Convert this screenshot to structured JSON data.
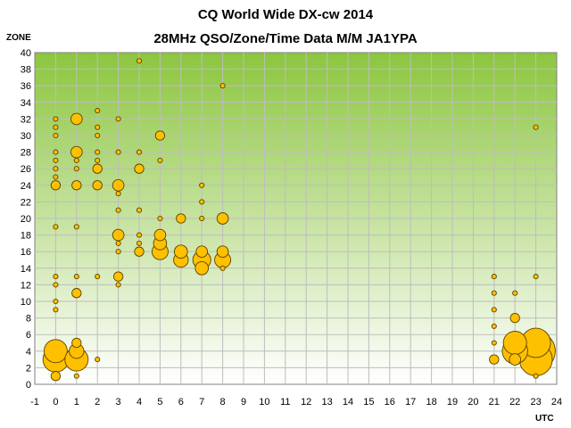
{
  "chart_data": {
    "type": "scatter",
    "title": "CQ World Wide DX-cw 2014",
    "subtitle": "28MHz QSO/Zone/Time Data M/M JA1YPA",
    "xlabel": "UTC",
    "ylabel": "ZONE",
    "xlim": [
      -1,
      24
    ],
    "ylim": [
      0,
      40
    ],
    "x_ticks": [
      -1,
      0,
      1,
      2,
      3,
      4,
      5,
      6,
      7,
      8,
      9,
      10,
      11,
      12,
      13,
      14,
      15,
      16,
      17,
      18,
      19,
      20,
      21,
      22,
      23,
      24
    ],
    "y_ticks": [
      0,
      2,
      4,
      6,
      8,
      10,
      12,
      14,
      16,
      18,
      20,
      22,
      24,
      26,
      28,
      30,
      32,
      34,
      36,
      38,
      40
    ],
    "grid": true,
    "legend": "none",
    "colors": {
      "bubble_fill": "#ffc000",
      "bubble_stroke": "#5a4400",
      "plot_bg_top": "#8cc63f",
      "plot_bg_bottom": "#ffffff"
    },
    "points": [
      {
        "x": 0,
        "y": 32,
        "size": 1
      },
      {
        "x": 0,
        "y": 31,
        "size": 1
      },
      {
        "x": 0,
        "y": 30,
        "size": 1
      },
      {
        "x": 0,
        "y": 28,
        "size": 1
      },
      {
        "x": 0,
        "y": 27,
        "size": 1
      },
      {
        "x": 0,
        "y": 26,
        "size": 1
      },
      {
        "x": 0,
        "y": 25,
        "size": 1
      },
      {
        "x": 0,
        "y": 24,
        "size": 4
      },
      {
        "x": 0,
        "y": 19,
        "size": 1
      },
      {
        "x": 0,
        "y": 13,
        "size": 1
      },
      {
        "x": 0,
        "y": 12,
        "size": 1
      },
      {
        "x": 0,
        "y": 10,
        "size": 1
      },
      {
        "x": 0,
        "y": 9,
        "size": 1
      },
      {
        "x": 0,
        "y": 4,
        "size": 25
      },
      {
        "x": 0,
        "y": 3,
        "size": 30
      },
      {
        "x": 0,
        "y": 1,
        "size": 4
      },
      {
        "x": 1,
        "y": 32,
        "size": 6
      },
      {
        "x": 1,
        "y": 28,
        "size": 6
      },
      {
        "x": 1,
        "y": 27,
        "size": 1
      },
      {
        "x": 1,
        "y": 26,
        "size": 1
      },
      {
        "x": 1,
        "y": 24,
        "size": 4
      },
      {
        "x": 1,
        "y": 19,
        "size": 1
      },
      {
        "x": 1,
        "y": 13,
        "size": 1
      },
      {
        "x": 1,
        "y": 11,
        "size": 4
      },
      {
        "x": 1,
        "y": 5,
        "size": 4
      },
      {
        "x": 1,
        "y": 4,
        "size": 10
      },
      {
        "x": 1,
        "y": 3,
        "size": 25
      },
      {
        "x": 1,
        "y": 1,
        "size": 1
      },
      {
        "x": 2,
        "y": 33,
        "size": 1
      },
      {
        "x": 2,
        "y": 31,
        "size": 1
      },
      {
        "x": 2,
        "y": 30,
        "size": 1
      },
      {
        "x": 2,
        "y": 28,
        "size": 1
      },
      {
        "x": 2,
        "y": 27,
        "size": 1
      },
      {
        "x": 2,
        "y": 26,
        "size": 4
      },
      {
        "x": 2,
        "y": 24,
        "size": 4
      },
      {
        "x": 2,
        "y": 13,
        "size": 1
      },
      {
        "x": 2,
        "y": 3,
        "size": 1
      },
      {
        "x": 3,
        "y": 32,
        "size": 1
      },
      {
        "x": 3,
        "y": 28,
        "size": 1
      },
      {
        "x": 3,
        "y": 24,
        "size": 6
      },
      {
        "x": 3,
        "y": 23,
        "size": 1
      },
      {
        "x": 3,
        "y": 21,
        "size": 1
      },
      {
        "x": 3,
        "y": 18,
        "size": 6
      },
      {
        "x": 3,
        "y": 17,
        "size": 1
      },
      {
        "x": 3,
        "y": 16,
        "size": 1
      },
      {
        "x": 3,
        "y": 13,
        "size": 4
      },
      {
        "x": 3,
        "y": 12,
        "size": 1
      },
      {
        "x": 4,
        "y": 39,
        "size": 1
      },
      {
        "x": 4,
        "y": 28,
        "size": 1
      },
      {
        "x": 4,
        "y": 26,
        "size": 4
      },
      {
        "x": 4,
        "y": 21,
        "size": 1
      },
      {
        "x": 4,
        "y": 18,
        "size": 1
      },
      {
        "x": 4,
        "y": 17,
        "size": 1
      },
      {
        "x": 4,
        "y": 16,
        "size": 4
      },
      {
        "x": 5,
        "y": 30,
        "size": 4
      },
      {
        "x": 5,
        "y": 27,
        "size": 1
      },
      {
        "x": 5,
        "y": 20,
        "size": 1
      },
      {
        "x": 5,
        "y": 18,
        "size": 6
      },
      {
        "x": 5,
        "y": 17,
        "size": 8
      },
      {
        "x": 5,
        "y": 16,
        "size": 12
      },
      {
        "x": 6,
        "y": 20,
        "size": 4
      },
      {
        "x": 6,
        "y": 16,
        "size": 8
      },
      {
        "x": 6,
        "y": 15,
        "size": 10
      },
      {
        "x": 7,
        "y": 24,
        "size": 1
      },
      {
        "x": 7,
        "y": 22,
        "size": 1
      },
      {
        "x": 7,
        "y": 20,
        "size": 1
      },
      {
        "x": 7,
        "y": 16,
        "size": 6
      },
      {
        "x": 7,
        "y": 15,
        "size": 15
      },
      {
        "x": 7,
        "y": 14,
        "size": 8
      },
      {
        "x": 8,
        "y": 36,
        "size": 1
      },
      {
        "x": 8,
        "y": 20,
        "size": 6
      },
      {
        "x": 8,
        "y": 16,
        "size": 6
      },
      {
        "x": 8,
        "y": 15,
        "size": 12
      },
      {
        "x": 8,
        "y": 14,
        "size": 1
      },
      {
        "x": 21,
        "y": 13,
        "size": 1
      },
      {
        "x": 21,
        "y": 11,
        "size": 1
      },
      {
        "x": 21,
        "y": 9,
        "size": 1
      },
      {
        "x": 21,
        "y": 7,
        "size": 1
      },
      {
        "x": 21,
        "y": 5,
        "size": 1
      },
      {
        "x": 21,
        "y": 3,
        "size": 4
      },
      {
        "x": 22,
        "y": 11,
        "size": 1
      },
      {
        "x": 22,
        "y": 8,
        "size": 4
      },
      {
        "x": 22,
        "y": 5,
        "size": 25
      },
      {
        "x": 22,
        "y": 4,
        "size": 30
      },
      {
        "x": 22,
        "y": 3,
        "size": 6
      },
      {
        "x": 23,
        "y": 31,
        "size": 1
      },
      {
        "x": 23,
        "y": 13,
        "size": 1
      },
      {
        "x": 23,
        "y": 5,
        "size": 40
      },
      {
        "x": 23,
        "y": 4,
        "size": 70
      },
      {
        "x": 23,
        "y": 3,
        "size": 50
      },
      {
        "x": 23,
        "y": 1,
        "size": 1
      }
    ]
  }
}
